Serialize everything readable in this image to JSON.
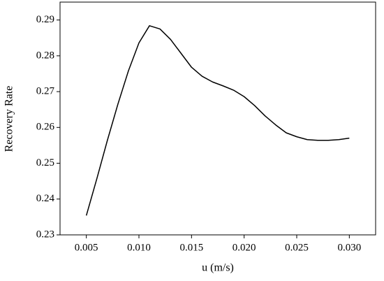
{
  "chart_data": {
    "type": "line",
    "x_label": "u (m/s)",
    "y_label": "Recovery Rate",
    "x": [
      0.005,
      0.006,
      0.007,
      0.008,
      0.009,
      0.01,
      0.011,
      0.012,
      0.013,
      0.014,
      0.015,
      0.016,
      0.017,
      0.018,
      0.019,
      0.02,
      0.021,
      0.022,
      0.023,
      0.024,
      0.025,
      0.026,
      0.027,
      0.028,
      0.029,
      0.03
    ],
    "series": [
      {
        "color": "#000000",
        "values": [
          0.2354,
          0.2457,
          0.2564,
          0.2665,
          0.2758,
          0.2836,
          0.2884,
          0.2875,
          0.2846,
          0.2807,
          0.2768,
          0.2743,
          0.2727,
          0.2716,
          0.2704,
          0.2686,
          0.2661,
          0.2632,
          0.2607,
          0.2585,
          0.2574,
          0.2566,
          0.2564,
          0.2564,
          0.2566,
          0.257
        ]
      }
    ],
    "xlim": [
      0.0025,
      0.0325
    ],
    "ylim": [
      0.23,
      0.295
    ],
    "xticks": [
      0.005,
      {
        "value": 0.01,
        "label": "0.010"
      },
      0.015,
      {
        "value": 0.02,
        "label": "0.020"
      },
      0.025,
      {
        "value": 0.03,
        "label": "0.030"
      }
    ],
    "yticks": [
      0.23,
      0.24,
      0.25,
      0.26,
      0.27,
      0.28,
      0.29
    ],
    "grid": false
  }
}
